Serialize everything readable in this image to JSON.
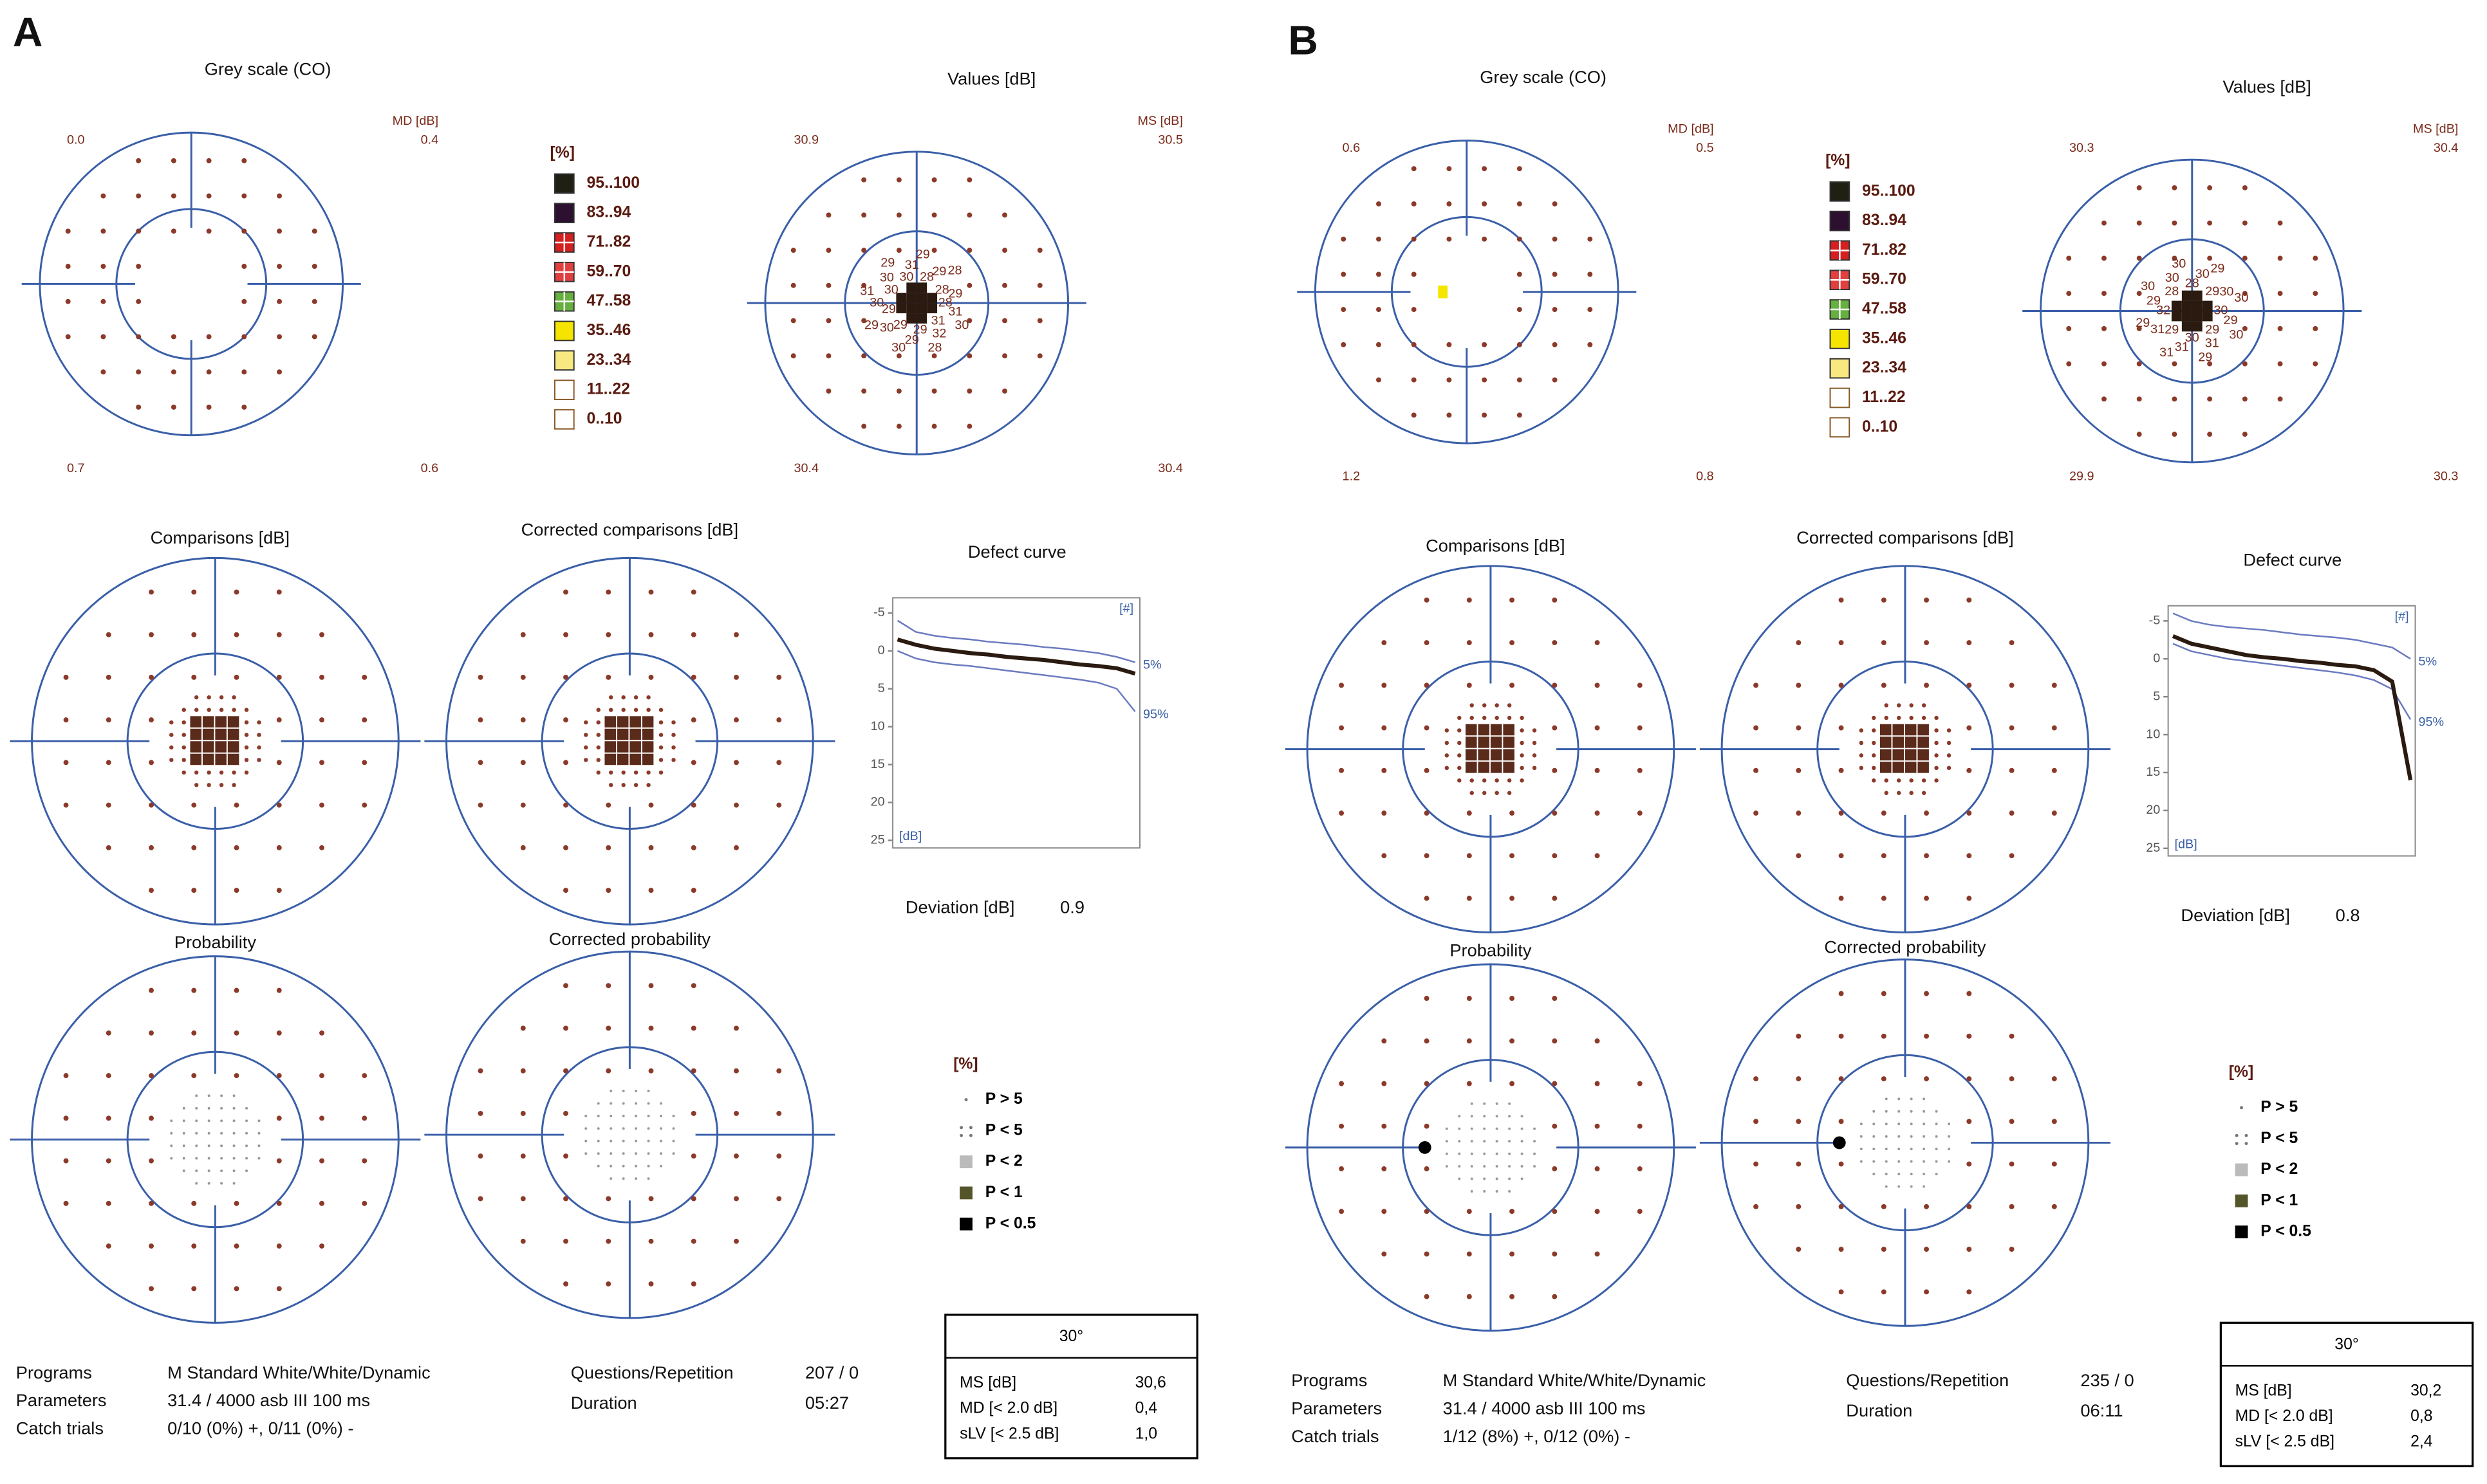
{
  "reports": [
    {
      "label": "A",
      "grey": {
        "title": "Grey scale (CO)",
        "corner_title": "MD [dB]",
        "corners": [
          "0.0",
          "0.4",
          "0.7",
          "0.6"
        ]
      },
      "legend": {
        "title": "[%]",
        "items": [
          "95..100",
          "83..94",
          "71..82",
          "59..70",
          "47..58",
          "35..46",
          "23..34",
          "11..22",
          "0..10"
        ]
      },
      "values_panel": {
        "title": "Values [dB]",
        "corner_title": "MS [dB]",
        "corners": [
          "30.9",
          "30.5",
          "30.4",
          "30.4"
        ],
        "numbers": [
          "28",
          "31",
          "30",
          "31",
          "32",
          "28",
          "29",
          "29",
          "30",
          "29",
          "30",
          "29",
          "29",
          "30",
          "31",
          "30",
          "30",
          "29",
          "30",
          "31",
          "29",
          "28",
          "29",
          "28",
          "28",
          "29"
        ]
      },
      "comparisons": {
        "title": "Comparisons [dB]"
      },
      "corrected_comparisons": {
        "title": "Corrected comparisons [dB]"
      },
      "defect_curve": {
        "title": "Defect curve",
        "top_label": "[#]",
        "axis_label": "[dB]",
        "ylim": [
          -7,
          26
        ],
        "yticks": [
          -5,
          0,
          5,
          10,
          15,
          20,
          25
        ],
        "curve": {
          "values": [
            -1.5,
            -0.8,
            -0.3,
            0,
            0.3,
            0.5,
            0.8,
            1,
            1.2,
            1.5,
            1.8,
            2,
            2.3,
            3
          ]
        },
        "bands": [
          {
            "name": "5%",
            "values": [
              -4,
              -2.5,
              -2,
              -1.7,
              -1.5,
              -1.2,
              -1,
              -0.8,
              -0.5,
              -0.3,
              0,
              0.3,
              0.8,
              1.5
            ]
          },
          {
            "name": "95%",
            "values": [
              0,
              1,
              1.5,
              1.8,
              2,
              2.3,
              2.6,
              2.9,
              3.2,
              3.5,
              3.8,
              4.2,
              5,
              8
            ]
          }
        ],
        "deviation_label": "Deviation [dB]",
        "deviation": "0.9"
      },
      "probability": {
        "title": "Probability"
      },
      "corrected_probability": {
        "title": "Corrected probability"
      },
      "p_legend": {
        "title": "[%]",
        "items": [
          "P > 5",
          "P < 5",
          "P < 2",
          "P < 1",
          "P < 0.5"
        ]
      },
      "info": {
        "labels": [
          "Programs",
          "Parameters",
          "Catch trials"
        ],
        "values": [
          "M Standard White/White/Dynamic",
          "31.4  / 4000 asb III 100 ms",
          "0/10 (0%) +, 0/11 (0%) -"
        ],
        "q_labels": [
          "Questions/Repetition",
          "Duration"
        ],
        "q_values": [
          "207 / 0",
          "05:27"
        ]
      },
      "summary": {
        "title": "30°",
        "rows": [
          [
            "MS [dB]",
            "30,6"
          ],
          [
            "MD [< 2.0 dB]",
            "0,4"
          ],
          [
            "sLV [< 2.5 dB]",
            "1,0"
          ]
        ]
      }
    },
    {
      "label": "B",
      "grey": {
        "title": "Grey scale (CO)",
        "corner_title": "MD [dB]",
        "corners": [
          "0.6",
          "0.5",
          "1.2",
          "0.8"
        ]
      },
      "legend": {
        "title": "[%]",
        "items": [
          "95..100",
          "83..94",
          "71..82",
          "59..70",
          "47..58",
          "35..46",
          "23..34",
          "11..22",
          "0..10"
        ]
      },
      "values_panel": {
        "title": "Values [dB]",
        "corner_title": "MS [dB]",
        "corners": [
          "30.3",
          "30.4",
          "29.9",
          "30.3"
        ],
        "numbers": [
          "30",
          "29",
          "30",
          "29",
          "31",
          "29",
          "30",
          "31",
          "31",
          "29",
          "31",
          "29",
          "32",
          "29",
          "30",
          "28",
          "30",
          "30",
          "28",
          "30",
          "29",
          "29",
          "30",
          "30"
        ]
      },
      "comparisons": {
        "title": "Comparisons [dB]"
      },
      "corrected_comparisons": {
        "title": "Corrected comparisons [dB]"
      },
      "defect_curve": {
        "title": "Defect curve",
        "top_label": "[#]",
        "axis_label": "[dB]",
        "ylim": [
          -7,
          26
        ],
        "yticks": [
          -5,
          0,
          5,
          10,
          15,
          20,
          25
        ],
        "curve": {
          "values": [
            -3,
            -2,
            -1.5,
            -1,
            -0.5,
            -0.2,
            0,
            0.3,
            0.5,
            0.8,
            1,
            1.5,
            3,
            16
          ]
        },
        "bands": [
          {
            "name": "5%",
            "values": [
              -6,
              -5,
              -4.5,
              -4.2,
              -4,
              -3.8,
              -3.5,
              -3.2,
              -3,
              -2.8,
              -2.5,
              -2,
              -1.5,
              0
            ]
          },
          {
            "name": "95%",
            "values": [
              -2,
              -1,
              -0.5,
              0,
              0.3,
              0.6,
              0.9,
              1.2,
              1.5,
              1.8,
              2.2,
              2.8,
              4,
              8
            ]
          }
        ],
        "deviation_label": "Deviation [dB]",
        "deviation": "0.8"
      },
      "probability": {
        "title": "Probability"
      },
      "corrected_probability": {
        "title": "Corrected probability"
      },
      "p_legend": {
        "title": "[%]",
        "items": [
          "P > 5",
          "P < 5",
          "P < 2",
          "P < 1",
          "P < 0.5"
        ]
      },
      "info": {
        "labels": [
          "Programs",
          "Parameters",
          "Catch trials"
        ],
        "values": [
          "M Standard White/White/Dynamic",
          "31.4  / 4000 asb III 100 ms",
          "1/12 (8%) +, 0/12 (0%) -"
        ],
        "q_labels": [
          "Questions/Repetition",
          "Duration"
        ],
        "q_values": [
          "235 / 0",
          "06:11"
        ]
      },
      "summary": {
        "title": "30°",
        "rows": [
          [
            "MS [dB]",
            "30,2"
          ],
          [
            "MD [< 2.0 dB]",
            "0,8"
          ],
          [
            "sLV [< 2.5 dB]",
            "2,4"
          ]
        ]
      }
    }
  ]
}
